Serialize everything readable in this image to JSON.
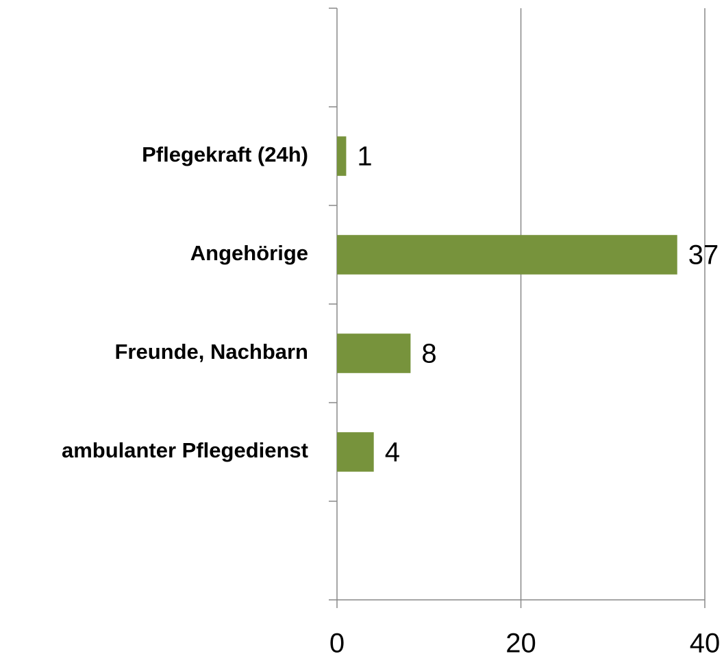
{
  "chart_data": {
    "type": "bar",
    "orientation": "horizontal",
    "categories": [
      null,
      "Pflegekraft (24h)",
      "Angehörige",
      "Freunde, Nachbarn",
      "ambulanter Pflegedienst",
      null
    ],
    "values": [
      null,
      1,
      37,
      8,
      4,
      null
    ],
    "color": "#77933c",
    "xlim": [
      0,
      40
    ],
    "xticks": [
      0,
      20,
      40
    ],
    "grid": true
  }
}
